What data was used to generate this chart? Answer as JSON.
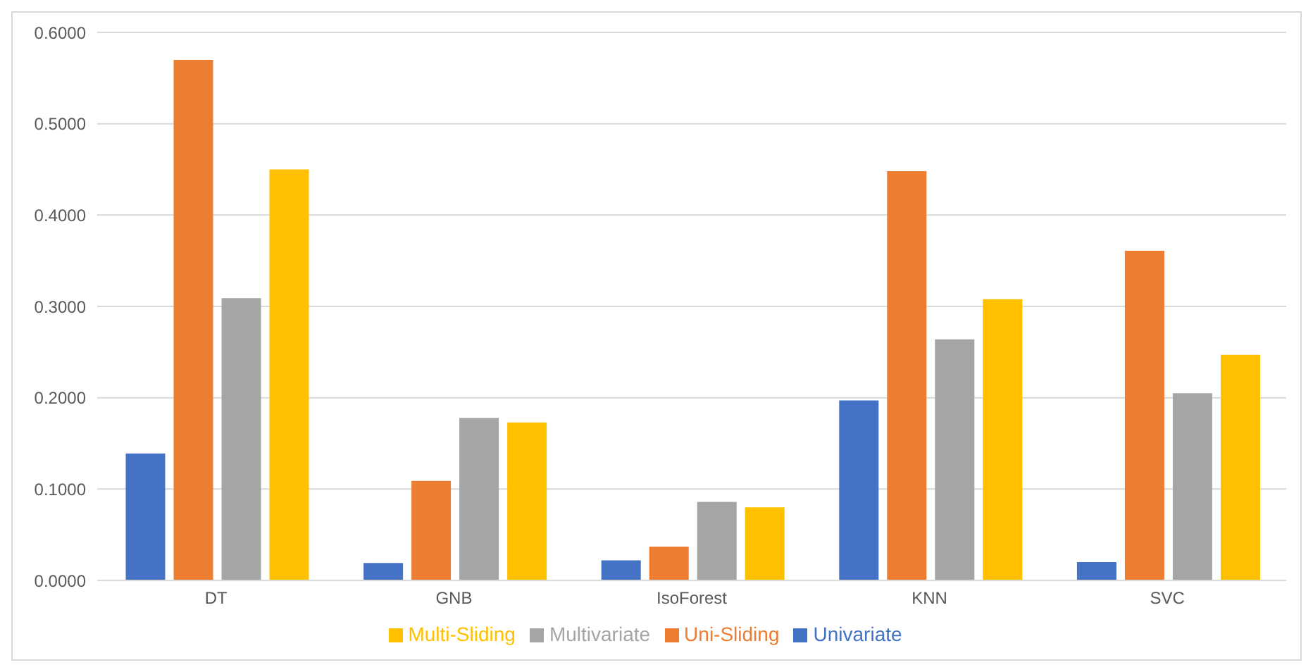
{
  "chart_data": {
    "type": "bar",
    "categories": [
      "DT",
      "GNB",
      "IsoForest",
      "KNN",
      "SVC"
    ],
    "series": [
      {
        "name": "Univariate",
        "color": "#4472c4",
        "values": [
          0.139,
          0.019,
          0.022,
          0.197,
          0.02
        ]
      },
      {
        "name": "Uni-Sliding",
        "color": "#ed7d31",
        "values": [
          0.57,
          0.109,
          0.037,
          0.448,
          0.361
        ]
      },
      {
        "name": "Multivariate",
        "color": "#a5a5a5",
        "values": [
          0.309,
          0.178,
          0.086,
          0.264,
          0.205
        ]
      },
      {
        "name": "Multi-Sliding",
        "color": "#ffc000",
        "values": [
          0.45,
          0.173,
          0.08,
          0.308,
          0.247
        ]
      }
    ],
    "ylim": [
      0,
      0.6
    ],
    "yticks": [
      {
        "value": 0,
        "label": "0.0000"
      },
      {
        "value": 0.1,
        "label": "0.1000"
      },
      {
        "value": 0.2,
        "label": "0.2000"
      },
      {
        "value": 0.3,
        "label": "0.3000"
      },
      {
        "value": 0.4,
        "label": "0.4000"
      },
      {
        "value": 0.5,
        "label": "0.5000"
      },
      {
        "value": 0.6,
        "label": "0.6000"
      }
    ],
    "grid": "y",
    "legend": "bottom"
  }
}
